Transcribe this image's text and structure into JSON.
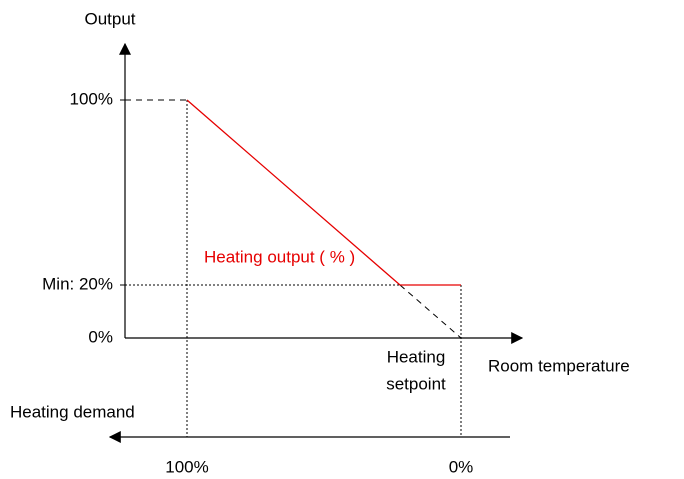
{
  "y_axis": {
    "title": "Output",
    "labels": [
      "100%",
      "Min: 20%",
      "0%"
    ]
  },
  "x_axis": {
    "title": "Room temperature",
    "setpoint": [
      "Heating",
      "setpoint"
    ]
  },
  "curve": {
    "label": "Heating output ( % )"
  },
  "demand_axis": {
    "title": "Heating demand",
    "labels": [
      "100%",
      "0%"
    ]
  }
}
